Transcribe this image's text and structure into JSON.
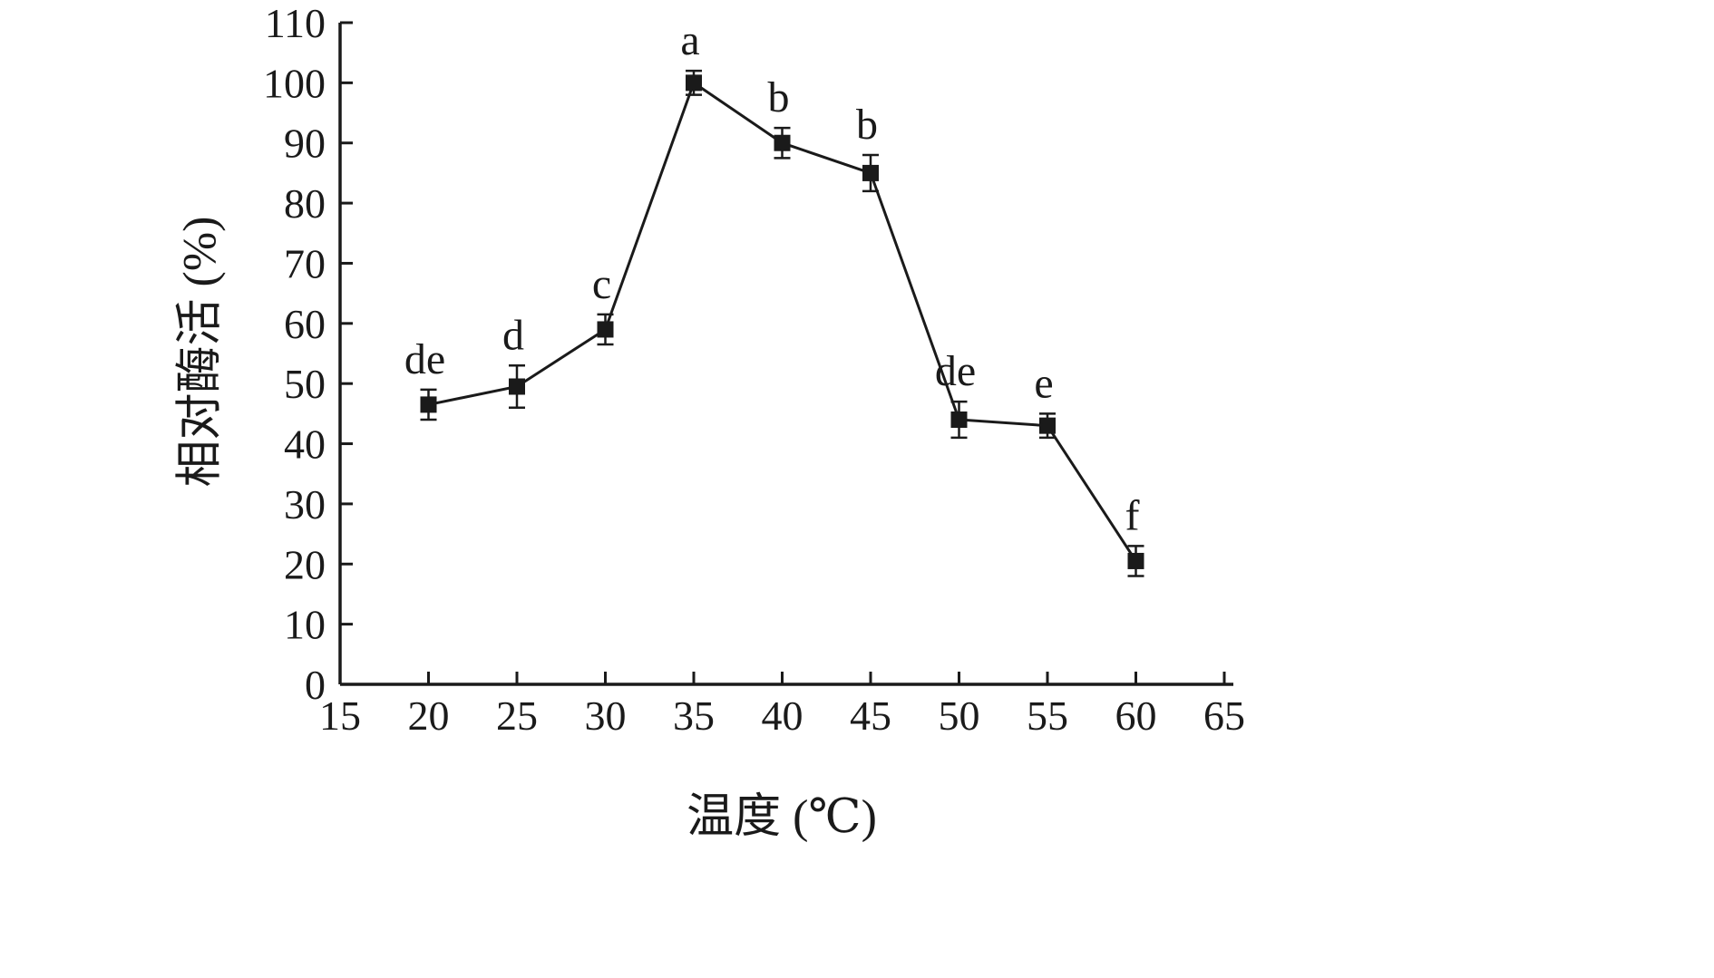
{
  "chart_data": {
    "type": "line",
    "title": "",
    "xlabel": "温度 (℃)",
    "ylabel": "相对酶活 (%)",
    "x": [
      20,
      25,
      30,
      35,
      40,
      45,
      50,
      55,
      60
    ],
    "y": [
      46.5,
      49.5,
      59,
      100,
      90,
      85,
      44,
      43,
      20.5
    ],
    "errors": [
      2.5,
      3.5,
      2.5,
      2,
      2.5,
      3,
      3,
      2,
      2.5
    ],
    "point_labels": [
      "de",
      "d",
      "c",
      "a",
      "b",
      "b",
      "de",
      "e",
      "f"
    ],
    "xlim": [
      15,
      65
    ],
    "ylim": [
      0,
      110
    ],
    "xticks": [
      15,
      20,
      25,
      30,
      35,
      40,
      45,
      50,
      55,
      60,
      65
    ],
    "yticks": [
      0,
      10,
      20,
      30,
      40,
      50,
      60,
      70,
      80,
      90,
      100,
      110
    ],
    "marker": "square",
    "line_color": "#1a1a1a",
    "grid": false,
    "legend": null
  }
}
